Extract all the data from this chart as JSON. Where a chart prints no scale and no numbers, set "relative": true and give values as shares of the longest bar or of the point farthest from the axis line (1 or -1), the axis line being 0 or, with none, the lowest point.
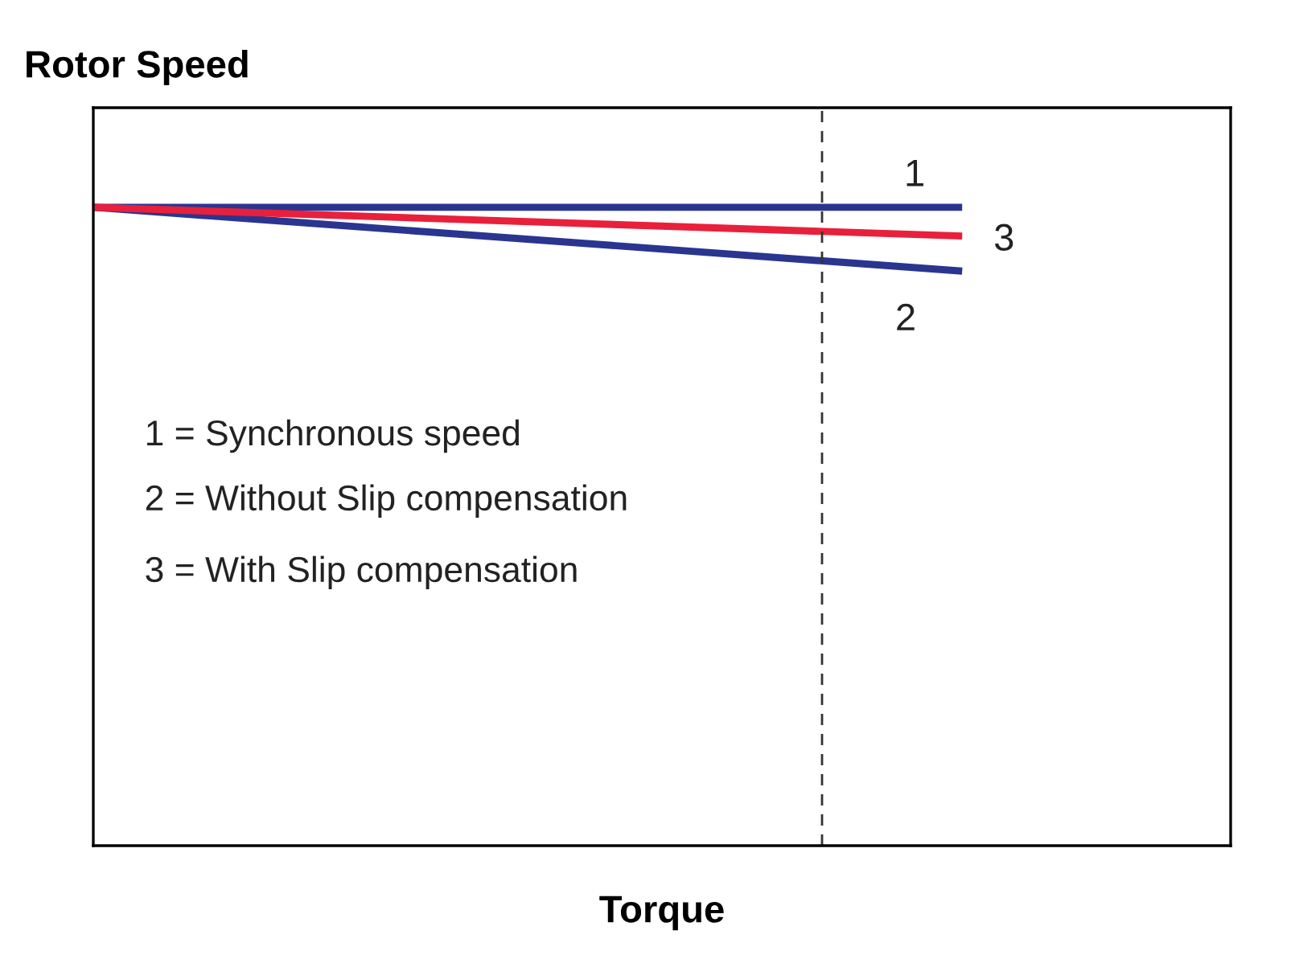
{
  "chart_data": {
    "type": "line",
    "title": "Rotor Speed",
    "xlabel": "Torque",
    "relative": true,
    "tick_labels": false,
    "categories": [
      null,
      null
    ],
    "series": [
      {
        "name": "1",
        "color": "#2a3590",
        "values": [
          1.0,
          1.0
        ]
      },
      {
        "name": "2",
        "color": "#2a3590",
        "values": [
          1.0,
          0.9
        ]
      },
      {
        "name": "3",
        "color": "#e8203c",
        "values": [
          1.0,
          0.955
        ]
      }
    ],
    "annotations": [
      "1 = Synchronous speed",
      "2 = Without Slip compensation",
      "3 = With Slip compensation"
    ]
  }
}
